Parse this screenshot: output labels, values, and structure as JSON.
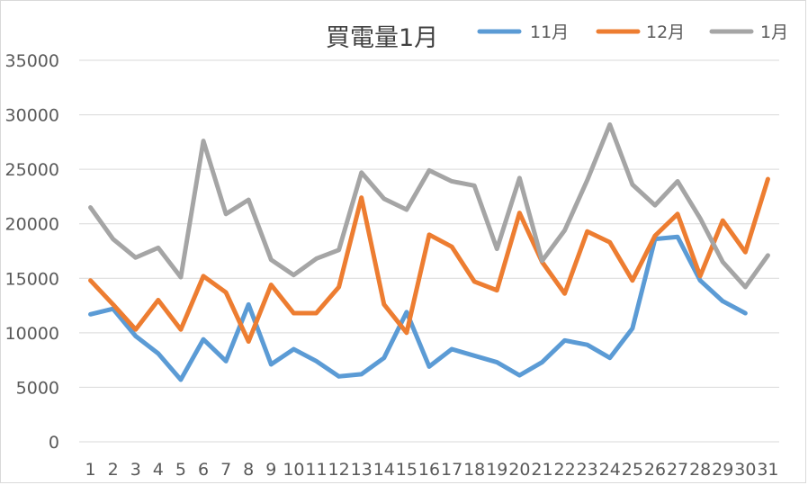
{
  "chart_data": {
    "type": "line",
    "title": "買電量1月",
    "xlabel": "",
    "ylabel": "",
    "categories": [
      "1",
      "2",
      "3",
      "4",
      "5",
      "6",
      "7",
      "8",
      "9",
      "10",
      "11",
      "12",
      "13",
      "14",
      "15",
      "16",
      "17",
      "18",
      "19",
      "20",
      "21",
      "22",
      "23",
      "24",
      "25",
      "26",
      "27",
      "28",
      "29",
      "30",
      "31"
    ],
    "ylim": [
      0,
      35000
    ],
    "yticks": [
      "0",
      "5000",
      "10000",
      "15000",
      "20000",
      "25000",
      "30000",
      "35000"
    ],
    "grid": true,
    "legend_position": "top-right",
    "series": [
      {
        "name": "11月",
        "color": "#5b9bd5",
        "values": [
          11700,
          12200,
          9700,
          8100,
          5700,
          9400,
          7400,
          12600,
          7100,
          8500,
          7400,
          6000,
          6200,
          7700,
          11900,
          6900,
          8500,
          7900,
          7300,
          6100,
          7300,
          9300,
          8900,
          7700,
          10400,
          18600,
          18800,
          14800,
          12900,
          11800,
          null
        ]
      },
      {
        "name": "12月",
        "color": "#ed7d31",
        "values": [
          14800,
          12600,
          10300,
          13000,
          10300,
          15200,
          13700,
          9200,
          14400,
          11800,
          11800,
          14200,
          22400,
          12600,
          10000,
          19000,
          17900,
          14700,
          13900,
          21000,
          16500,
          13600,
          19300,
          18300,
          14800,
          18900,
          20900,
          15200,
          20300,
          17400,
          24100
        ]
      },
      {
        "name": "1月",
        "color": "#a5a5a5",
        "values": [
          21500,
          18600,
          16900,
          17800,
          15100,
          27600,
          20900,
          22200,
          16700,
          15300,
          16800,
          17600,
          24700,
          22300,
          21300,
          24900,
          23900,
          23500,
          17700,
          24200,
          16600,
          19400,
          24000,
          29100,
          23600,
          21700,
          23900,
          20500,
          16500,
          14200,
          17100
        ]
      }
    ]
  }
}
